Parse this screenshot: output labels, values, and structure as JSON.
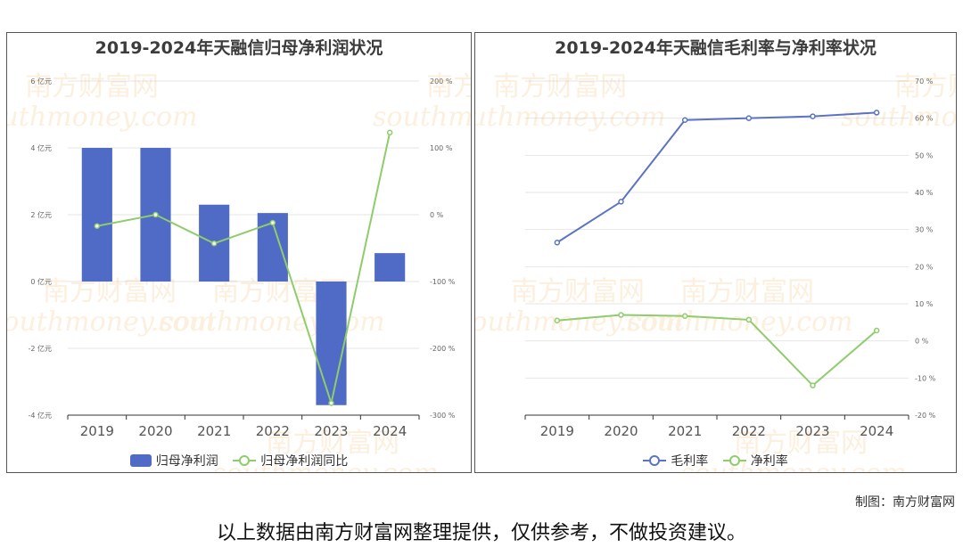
{
  "colors": {
    "bar": "#4f6bc5",
    "net_line": "#8fcc6b",
    "gross_line": "#5b73c4",
    "axis": "#333333",
    "grid": "#e6e6e6"
  },
  "chart_data": [
    {
      "type": "bar",
      "title": "2019-2024年天融信归母净利润状况",
      "categories": [
        "2019",
        "2020",
        "2021",
        "2022",
        "2023",
        "2024"
      ],
      "series": [
        {
          "name": "归母净利润",
          "type": "bar",
          "axis": "left",
          "values": [
            4.0,
            4.0,
            2.3,
            2.05,
            -3.7,
            0.85
          ]
        },
        {
          "name": "归母净利润同比",
          "type": "line",
          "axis": "right",
          "values": [
            -17,
            0,
            -43,
            -12,
            -282,
            123
          ]
        }
      ],
      "left_axis": {
        "ylim": [
          -4,
          6
        ],
        "ticks": [
          "-4 亿元",
          "-2 亿元",
          "0 亿元",
          "2 亿元",
          "4 亿元",
          "6 亿元"
        ]
      },
      "right_axis": {
        "ylim": [
          -300,
          200
        ],
        "ticks": [
          "-300 %",
          "-200 %",
          "-100 %",
          "0 %",
          "100 %",
          "200 %"
        ]
      },
      "grid": true,
      "legend": "bottom"
    },
    {
      "type": "line",
      "title": "2019-2024年天融信毛利率与净利率状况",
      "categories": [
        "2019",
        "2020",
        "2021",
        "2022",
        "2023",
        "2024"
      ],
      "series": [
        {
          "name": "毛利率",
          "values": [
            26.5,
            37.5,
            59.5,
            60.0,
            60.5,
            61.5
          ]
        },
        {
          "name": "净利率",
          "values": [
            5.5,
            7.0,
            6.7,
            5.7,
            -12.0,
            2.8
          ]
        }
      ],
      "right_axis": {
        "ylim": [
          -20,
          70
        ],
        "ticks": [
          "-20 %",
          "-10 %",
          "0 %",
          "10 %",
          "20 %",
          "30 %",
          "40 %",
          "50 %",
          "60 %",
          "70 %"
        ]
      },
      "grid": true,
      "legend": "bottom"
    }
  ],
  "watermark": {
    "text_cn": "南方财富网",
    "text_en": "southmoney.com"
  },
  "footer": {
    "credit": "制图：南方财富网",
    "disclaimer": "以上数据由南方财富网整理提供，仅供参考，不做投资建议。"
  }
}
